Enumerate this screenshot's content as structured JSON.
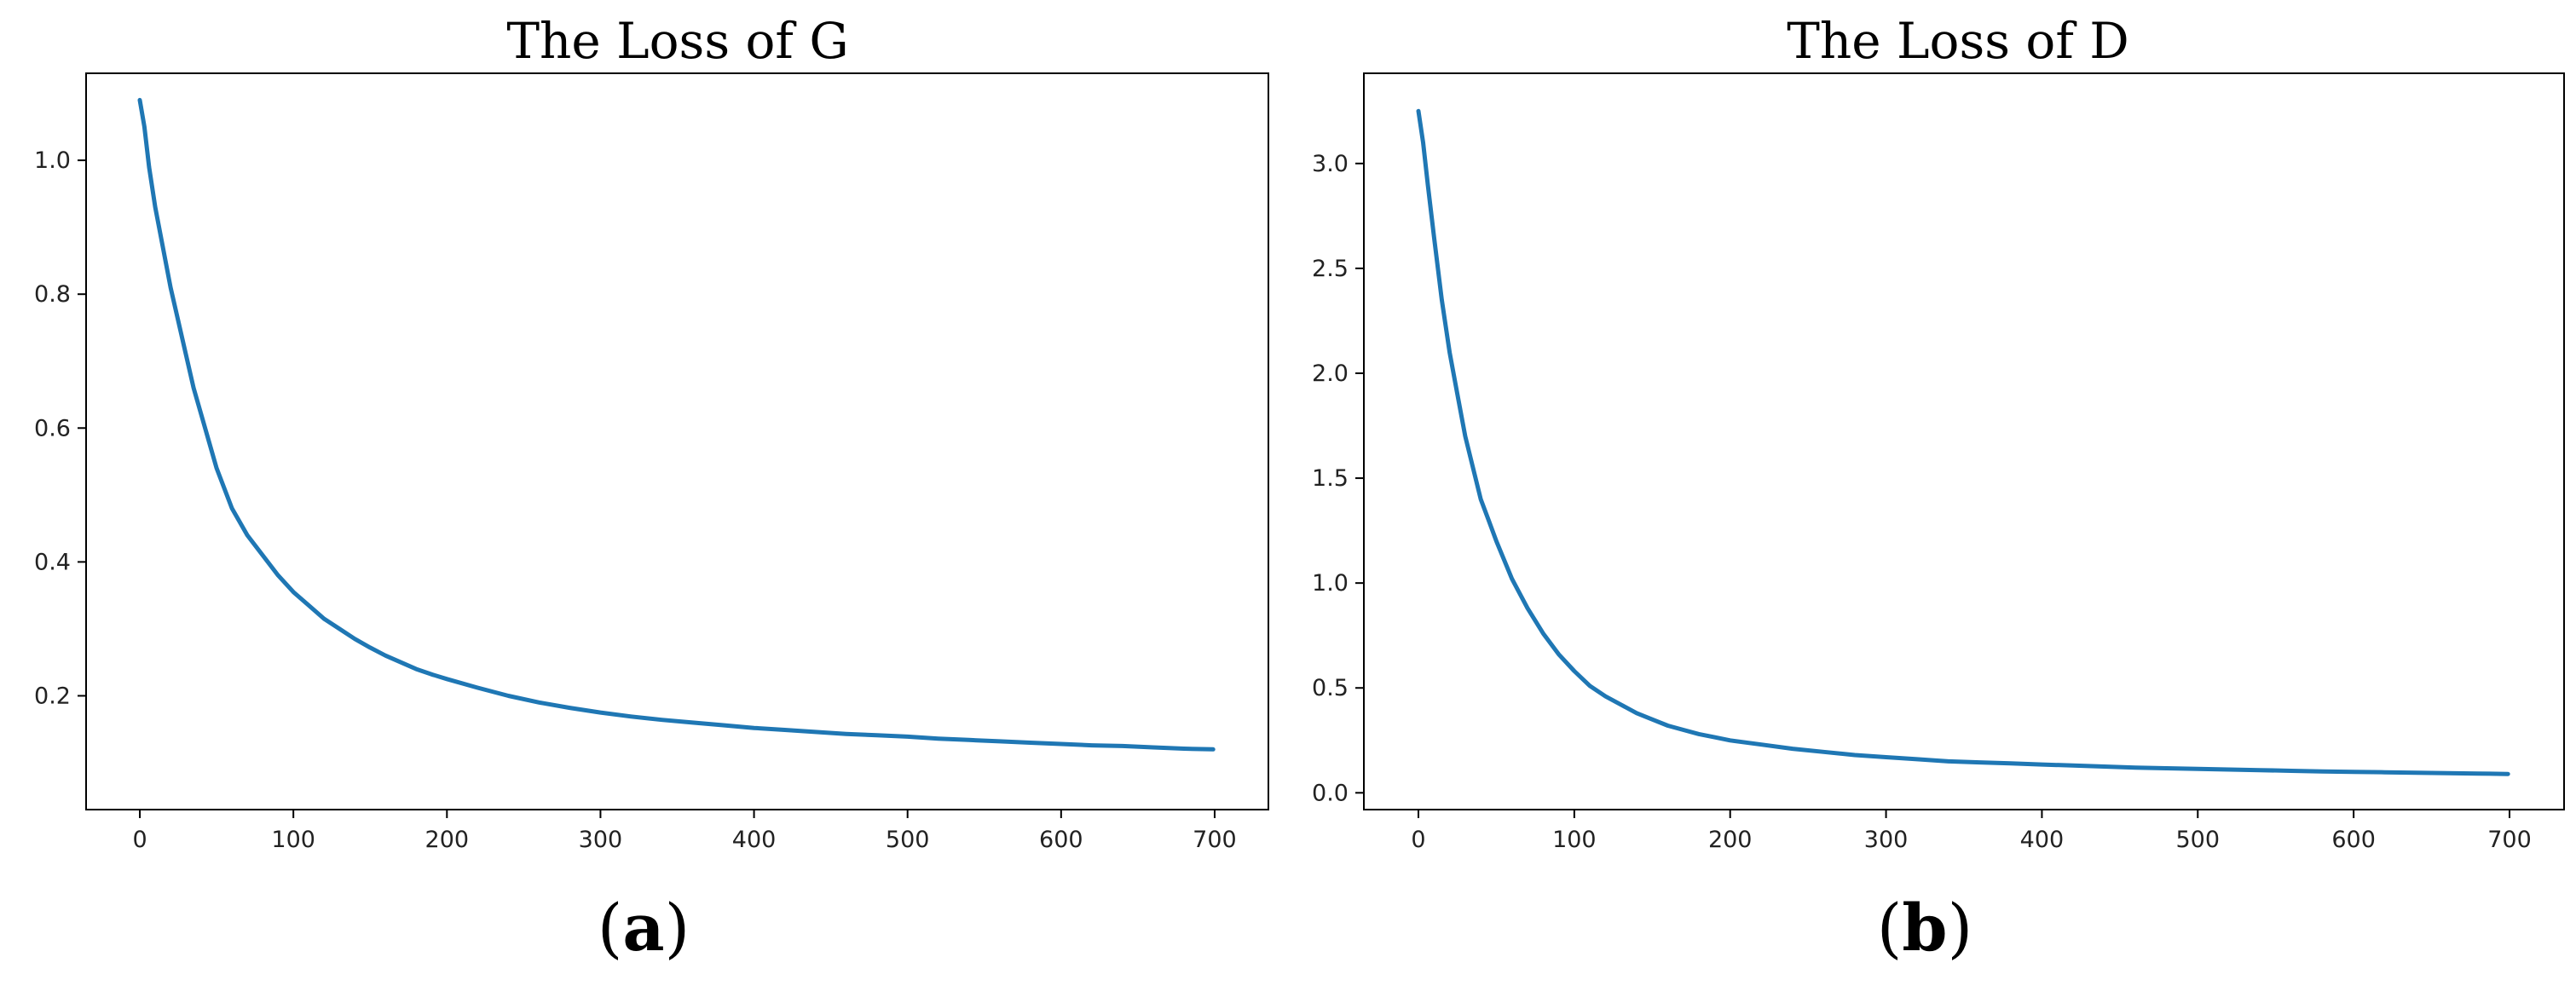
{
  "chart_data": [
    {
      "type": "line",
      "title": "The Loss of G",
      "caption": {
        "open": "(",
        "letter": "a",
        "close": ")"
      },
      "xlabel": "",
      "ylabel": "",
      "xlim": [
        -35,
        735
      ],
      "ylim": [
        0.03,
        1.13
      ],
      "xticks": [
        0,
        100,
        200,
        300,
        400,
        500,
        600,
        700
      ],
      "xtick_labels": [
        "0",
        "100",
        "200",
        "300",
        "400",
        "500",
        "600",
        "700"
      ],
      "yticks": [
        0.2,
        0.4,
        0.6,
        0.8,
        1.0
      ],
      "ytick_labels": [
        "0.2",
        "0.4",
        "0.6",
        "0.8",
        "1.0"
      ],
      "grid": false,
      "series": [
        {
          "color": "#1f77b4",
          "x": [
            0,
            3,
            6,
            10,
            15,
            20,
            25,
            30,
            35,
            40,
            45,
            50,
            60,
            70,
            80,
            90,
            100,
            110,
            120,
            130,
            140,
            150,
            160,
            170,
            180,
            190,
            200,
            220,
            240,
            260,
            280,
            300,
            320,
            340,
            360,
            380,
            400,
            420,
            440,
            460,
            480,
            500,
            520,
            540,
            560,
            580,
            600,
            620,
            640,
            660,
            680,
            699
          ],
          "y": [
            1.09,
            1.05,
            0.99,
            0.93,
            0.87,
            0.81,
            0.76,
            0.71,
            0.66,
            0.62,
            0.58,
            0.54,
            0.48,
            0.44,
            0.41,
            0.38,
            0.355,
            0.335,
            0.315,
            0.3,
            0.285,
            0.272,
            0.26,
            0.25,
            0.24,
            0.232,
            0.225,
            0.212,
            0.2,
            0.19,
            0.182,
            0.175,
            0.169,
            0.164,
            0.16,
            0.156,
            0.152,
            0.149,
            0.146,
            0.143,
            0.141,
            0.139,
            0.136,
            0.134,
            0.132,
            0.13,
            0.128,
            0.126,
            0.125,
            0.123,
            0.121,
            0.12
          ]
        }
      ]
    },
    {
      "type": "line",
      "title": "The Loss of D",
      "caption": {
        "open": "(",
        "letter": "b",
        "close": ")"
      },
      "xlabel": "",
      "ylabel": "",
      "xlim": [
        -35,
        735
      ],
      "ylim": [
        -0.08,
        3.43
      ],
      "xticks": [
        0,
        100,
        200,
        300,
        400,
        500,
        600,
        700
      ],
      "xtick_labels": [
        "0",
        "100",
        "200",
        "300",
        "400",
        "500",
        "600",
        "700"
      ],
      "yticks": [
        0.0,
        0.5,
        1.0,
        1.5,
        2.0,
        2.5,
        3.0
      ],
      "ytick_labels": [
        "0.0",
        "0.5",
        "1.0",
        "1.5",
        "2.0",
        "2.5",
        "3.0"
      ],
      "grid": false,
      "series": [
        {
          "color": "#1f77b4",
          "x": [
            0,
            3,
            6,
            10,
            15,
            20,
            25,
            30,
            35,
            40,
            45,
            50,
            60,
            70,
            80,
            90,
            100,
            110,
            120,
            130,
            140,
            150,
            160,
            170,
            180,
            190,
            200,
            220,
            240,
            260,
            280,
            300,
            320,
            340,
            360,
            380,
            400,
            420,
            440,
            460,
            480,
            500,
            520,
            540,
            560,
            580,
            600,
            620,
            640,
            660,
            680,
            699
          ],
          "y": [
            3.25,
            3.1,
            2.9,
            2.65,
            2.35,
            2.1,
            1.9,
            1.7,
            1.55,
            1.4,
            1.3,
            1.2,
            1.02,
            0.88,
            0.76,
            0.66,
            0.58,
            0.51,
            0.46,
            0.42,
            0.38,
            0.35,
            0.32,
            0.3,
            0.28,
            0.265,
            0.25,
            0.23,
            0.21,
            0.195,
            0.18,
            0.17,
            0.16,
            0.15,
            0.145,
            0.14,
            0.135,
            0.13,
            0.125,
            0.12,
            0.117,
            0.114,
            0.111,
            0.108,
            0.105,
            0.102,
            0.1,
            0.098,
            0.096,
            0.094,
            0.092,
            0.09
          ]
        }
      ]
    }
  ]
}
